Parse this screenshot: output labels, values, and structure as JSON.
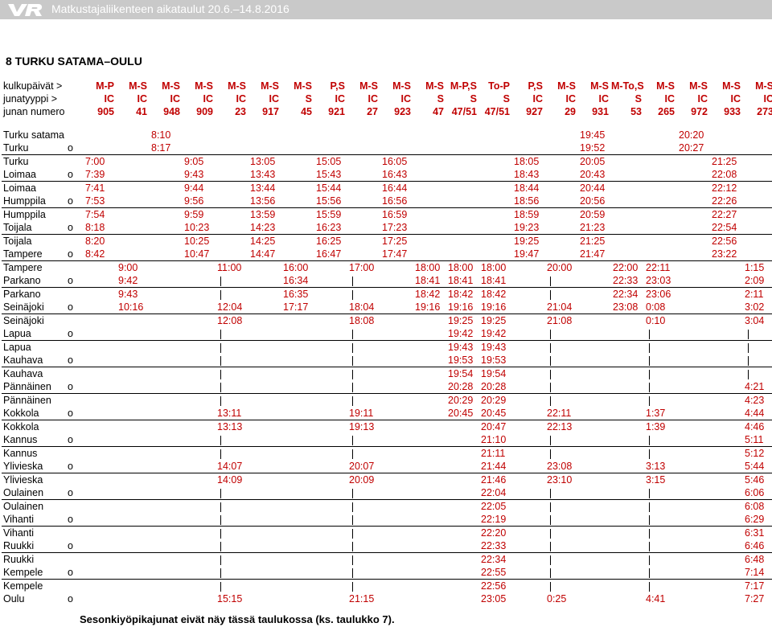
{
  "header": {
    "title": "Matkustajaliikenteen aikataulut 20.6.–14.8.2016",
    "brand_color": "#c00000"
  },
  "section_title": "8 TURKU SATAMA–OULU",
  "footnote": "Sesonkiyöpikajunat eivät näy tässä taulukossa (ks. taulukko 7).",
  "columns": [
    {
      "days": "M-P",
      "type": "IC",
      "num": "905"
    },
    {
      "days": "M-S",
      "type": "IC",
      "num": "41"
    },
    {
      "days": "M-S",
      "type": "IC",
      "num": "948"
    },
    {
      "days": "M-S",
      "type": "IC",
      "num": "909"
    },
    {
      "days": "M-S",
      "type": "IC",
      "num": "23"
    },
    {
      "days": "M-S",
      "type": "IC",
      "num": "917"
    },
    {
      "days": "M-S",
      "type": "S",
      "num": "45"
    },
    {
      "days": "P,S",
      "type": "IC",
      "num": "921"
    },
    {
      "days": "M-S",
      "type": "IC",
      "num": "27"
    },
    {
      "days": "M-S",
      "type": "IC",
      "num": "923"
    },
    {
      "days": "M-S",
      "type": "S",
      "num": "47"
    },
    {
      "days": "M-P,S",
      "type": "S",
      "num": "47/51"
    },
    {
      "days": "To-P",
      "type": "S",
      "num": "47/51"
    },
    {
      "days": "P,S",
      "type": "IC",
      "num": "927"
    },
    {
      "days": "M-S",
      "type": "IC",
      "num": "29"
    },
    {
      "days": "M-S",
      "type": "IC",
      "num": "931"
    },
    {
      "days": "M-To,S",
      "type": "S",
      "num": "53"
    },
    {
      "days": "M-S",
      "type": "IC",
      "num": "265"
    },
    {
      "days": "M-S",
      "type": "IC",
      "num": "972"
    },
    {
      "days": "M-S",
      "type": "IC",
      "num": "933"
    },
    {
      "days": "M-S",
      "type": "IC",
      "num": "273"
    }
  ],
  "header_labels": {
    "days": "kulkupäivät >",
    "type": "junatyyppi >",
    "num": "junan numero"
  },
  "rows": [
    {
      "st": "Turku satama",
      "mk": "",
      "sep": false,
      "t": [
        "",
        "",
        "8:10",
        "",
        "",
        "",
        "",
        "",
        "",
        "",
        "",
        "",
        "",
        "",
        "",
        "19:45",
        "",
        "",
        "20:20",
        "",
        ""
      ]
    },
    {
      "st": "Turku",
      "mk": "o",
      "sep": false,
      "t": [
        "",
        "",
        "8:17",
        "",
        "",
        "",
        "",
        "",
        "",
        "",
        "",
        "",
        "",
        "",
        "",
        "19:52",
        "",
        "",
        "20:27",
        "",
        ""
      ]
    },
    {
      "st": "Turku",
      "mk": "",
      "sep": true,
      "t": [
        "7:00",
        "",
        "",
        "9:05",
        "",
        "13:05",
        "",
        "15:05",
        "",
        "16:05",
        "",
        "",
        "",
        "18:05",
        "",
        "20:05",
        "",
        "",
        "",
        "21:25",
        ""
      ]
    },
    {
      "st": "Loimaa",
      "mk": "o",
      "sep": false,
      "t": [
        "7:39",
        "",
        "",
        "9:43",
        "",
        "13:43",
        "",
        "15:43",
        "",
        "16:43",
        "",
        "",
        "",
        "18:43",
        "",
        "20:43",
        "",
        "",
        "",
        "22:08",
        ""
      ]
    },
    {
      "st": "Loimaa",
      "mk": "",
      "sep": true,
      "t": [
        "7:41",
        "",
        "",
        "9:44",
        "",
        "13:44",
        "",
        "15:44",
        "",
        "16:44",
        "",
        "",
        "",
        "18:44",
        "",
        "20:44",
        "",
        "",
        "",
        "22:12",
        ""
      ]
    },
    {
      "st": "Humppila",
      "mk": "o",
      "sep": false,
      "t": [
        "7:53",
        "",
        "",
        "9:56",
        "",
        "13:56",
        "",
        "15:56",
        "",
        "16:56",
        "",
        "",
        "",
        "18:56",
        "",
        "20:56",
        "",
        "",
        "",
        "22:26",
        ""
      ]
    },
    {
      "st": "Humppila",
      "mk": "",
      "sep": true,
      "t": [
        "7:54",
        "",
        "",
        "9:59",
        "",
        "13:59",
        "",
        "15:59",
        "",
        "16:59",
        "",
        "",
        "",
        "18:59",
        "",
        "20:59",
        "",
        "",
        "",
        "22:27",
        ""
      ]
    },
    {
      "st": "Toijala",
      "mk": "o",
      "sep": false,
      "t": [
        "8:18",
        "",
        "",
        "10:23",
        "",
        "14:23",
        "",
        "16:23",
        "",
        "17:23",
        "",
        "",
        "",
        "19:23",
        "",
        "21:23",
        "",
        "",
        "",
        "22:54",
        ""
      ]
    },
    {
      "st": "Toijala",
      "mk": "",
      "sep": true,
      "t": [
        "8:20",
        "",
        "",
        "10:25",
        "",
        "14:25",
        "",
        "16:25",
        "",
        "17:25",
        "",
        "",
        "",
        "19:25",
        "",
        "21:25",
        "",
        "",
        "",
        "22:56",
        ""
      ]
    },
    {
      "st": "Tampere",
      "mk": "o",
      "sep": false,
      "t": [
        "8:42",
        "",
        "",
        "10:47",
        "",
        "14:47",
        "",
        "16:47",
        "",
        "17:47",
        "",
        "",
        "",
        "19:47",
        "",
        "21:47",
        "",
        "",
        "",
        "23:22",
        ""
      ]
    },
    {
      "st": "Tampere",
      "mk": "",
      "sep": true,
      "t": [
        "",
        "9:00",
        "",
        "",
        "11:00",
        "",
        "16:00",
        "",
        "17:00",
        "",
        "18:00",
        "18:00",
        "18:00",
        "",
        "20:00",
        "",
        "22:00",
        "22:11",
        "",
        "",
        "1:15"
      ]
    },
    {
      "st": "Parkano",
      "mk": "o",
      "sep": false,
      "t": [
        "",
        "9:42",
        "",
        "",
        "|",
        "",
        "16:34",
        "",
        "|",
        "",
        "18:41",
        "18:41",
        "18:41",
        "",
        "|",
        "",
        "22:33",
        "23:03",
        "",
        "",
        "2:09"
      ]
    },
    {
      "st": "Parkano",
      "mk": "",
      "sep": true,
      "t": [
        "",
        "9:43",
        "",
        "",
        "|",
        "",
        "16:35",
        "",
        "|",
        "",
        "18:42",
        "18:42",
        "18:42",
        "",
        "|",
        "",
        "22:34",
        "23:06",
        "",
        "",
        "2:11"
      ]
    },
    {
      "st": "Seinäjoki",
      "mk": "o",
      "sep": false,
      "t": [
        "",
        "10:16",
        "",
        "",
        "12:04",
        "",
        "17:17",
        "",
        "18:04",
        "",
        "19:16",
        "19:16",
        "19:16",
        "",
        "21:04",
        "",
        "23:08",
        "0:08",
        "",
        "",
        "3:02"
      ]
    },
    {
      "st": "Seinäjoki",
      "mk": "",
      "sep": true,
      "t": [
        "",
        "",
        "",
        "",
        "12:08",
        "",
        "",
        "",
        "18:08",
        "",
        "",
        "19:25",
        "19:25",
        "",
        "21:08",
        "",
        "",
        "0:10",
        "",
        "",
        "3:04"
      ]
    },
    {
      "st": "Lapua",
      "mk": "o",
      "sep": false,
      "t": [
        "",
        "",
        "",
        "",
        "|",
        "",
        "",
        "",
        "|",
        "",
        "",
        "19:42",
        "19:42",
        "",
        "|",
        "",
        "",
        "|",
        "",
        "",
        "|"
      ]
    },
    {
      "st": "Lapua",
      "mk": "",
      "sep": true,
      "t": [
        "",
        "",
        "",
        "",
        "|",
        "",
        "",
        "",
        "|",
        "",
        "",
        "19:43",
        "19:43",
        "",
        "|",
        "",
        "",
        "|",
        "",
        "",
        "|"
      ]
    },
    {
      "st": "Kauhava",
      "mk": "o",
      "sep": false,
      "t": [
        "",
        "",
        "",
        "",
        "|",
        "",
        "",
        "",
        "|",
        "",
        "",
        "19:53",
        "19:53",
        "",
        "|",
        "",
        "",
        "|",
        "",
        "",
        "|"
      ]
    },
    {
      "st": "Kauhava",
      "mk": "",
      "sep": true,
      "t": [
        "",
        "",
        "",
        "",
        "|",
        "",
        "",
        "",
        "|",
        "",
        "",
        "19:54",
        "19:54",
        "",
        "|",
        "",
        "",
        "|",
        "",
        "",
        "|"
      ]
    },
    {
      "st": "Pännäinen",
      "mk": "o",
      "sep": false,
      "t": [
        "",
        "",
        "",
        "",
        "|",
        "",
        "",
        "",
        "|",
        "",
        "",
        "20:28",
        "20:28",
        "",
        "|",
        "",
        "",
        "|",
        "",
        "",
        "4:21"
      ]
    },
    {
      "st": "Pännäinen",
      "mk": "",
      "sep": true,
      "t": [
        "",
        "",
        "",
        "",
        "|",
        "",
        "",
        "",
        "|",
        "",
        "",
        "20:29",
        "20:29",
        "",
        "|",
        "",
        "",
        "|",
        "",
        "",
        "4:23"
      ]
    },
    {
      "st": "Kokkola",
      "mk": "o",
      "sep": false,
      "t": [
        "",
        "",
        "",
        "",
        "13:11",
        "",
        "",
        "",
        "19:11",
        "",
        "",
        "20:45",
        "20:45",
        "",
        "22:11",
        "",
        "",
        "1:37",
        "",
        "",
        "4:44"
      ]
    },
    {
      "st": "Kokkola",
      "mk": "",
      "sep": true,
      "t": [
        "",
        "",
        "",
        "",
        "13:13",
        "",
        "",
        "",
        "19:13",
        "",
        "",
        "",
        "20:47",
        "",
        "22:13",
        "",
        "",
        "1:39",
        "",
        "",
        "4:46"
      ]
    },
    {
      "st": "Kannus",
      "mk": "o",
      "sep": false,
      "t": [
        "",
        "",
        "",
        "",
        "|",
        "",
        "",
        "",
        "|",
        "",
        "",
        "",
        "21:10",
        "",
        "|",
        "",
        "",
        "|",
        "",
        "",
        "5:11"
      ]
    },
    {
      "st": "Kannus",
      "mk": "",
      "sep": true,
      "t": [
        "",
        "",
        "",
        "",
        "|",
        "",
        "",
        "",
        "|",
        "",
        "",
        "",
        "21:11",
        "",
        "|",
        "",
        "",
        "|",
        "",
        "",
        "5:12"
      ]
    },
    {
      "st": "Ylivieska",
      "mk": "o",
      "sep": false,
      "t": [
        "",
        "",
        "",
        "",
        "14:07",
        "",
        "",
        "",
        "20:07",
        "",
        "",
        "",
        "21:44",
        "",
        "23:08",
        "",
        "",
        "3:13",
        "",
        "",
        "5:44"
      ]
    },
    {
      "st": "Ylivieska",
      "mk": "",
      "sep": true,
      "t": [
        "",
        "",
        "",
        "",
        "14:09",
        "",
        "",
        "",
        "20:09",
        "",
        "",
        "",
        "21:46",
        "",
        "23:10",
        "",
        "",
        "3:15",
        "",
        "",
        "5:46"
      ]
    },
    {
      "st": "Oulainen",
      "mk": "o",
      "sep": false,
      "t": [
        "",
        "",
        "",
        "",
        "|",
        "",
        "",
        "",
        "|",
        "",
        "",
        "",
        "22:04",
        "",
        "|",
        "",
        "",
        "|",
        "",
        "",
        "6:06"
      ]
    },
    {
      "st": "Oulainen",
      "mk": "",
      "sep": true,
      "t": [
        "",
        "",
        "",
        "",
        "|",
        "",
        "",
        "",
        "|",
        "",
        "",
        "",
        "22:05",
        "",
        "|",
        "",
        "",
        "|",
        "",
        "",
        "6:08"
      ]
    },
    {
      "st": "Vihanti",
      "mk": "o",
      "sep": false,
      "t": [
        "",
        "",
        "",
        "",
        "|",
        "",
        "",
        "",
        "|",
        "",
        "",
        "",
        "22:19",
        "",
        "|",
        "",
        "",
        "|",
        "",
        "",
        "6:29"
      ]
    },
    {
      "st": "Vihanti",
      "mk": "",
      "sep": true,
      "t": [
        "",
        "",
        "",
        "",
        "|",
        "",
        "",
        "",
        "|",
        "",
        "",
        "",
        "22:20",
        "",
        "|",
        "",
        "",
        "|",
        "",
        "",
        "6:31"
      ]
    },
    {
      "st": "Ruukki",
      "mk": "o",
      "sep": false,
      "t": [
        "",
        "",
        "",
        "",
        "|",
        "",
        "",
        "",
        "|",
        "",
        "",
        "",
        "22:33",
        "",
        "|",
        "",
        "",
        "|",
        "",
        "",
        "6:46"
      ]
    },
    {
      "st": "Ruukki",
      "mk": "",
      "sep": true,
      "t": [
        "",
        "",
        "",
        "",
        "|",
        "",
        "",
        "",
        "|",
        "",
        "",
        "",
        "22:34",
        "",
        "|",
        "",
        "",
        "|",
        "",
        "",
        "6:48"
      ]
    },
    {
      "st": "Kempele",
      "mk": "o",
      "sep": false,
      "t": [
        "",
        "",
        "",
        "",
        "|",
        "",
        "",
        "",
        "|",
        "",
        "",
        "",
        "22:55",
        "",
        "|",
        "",
        "",
        "|",
        "",
        "",
        "7:14"
      ]
    },
    {
      "st": "Kempele",
      "mk": "",
      "sep": true,
      "t": [
        "",
        "",
        "",
        "",
        "|",
        "",
        "",
        "",
        "|",
        "",
        "",
        "",
        "22:56",
        "",
        "|",
        "",
        "",
        "|",
        "",
        "",
        "7:17"
      ]
    },
    {
      "st": "Oulu",
      "mk": "o",
      "sep": false,
      "t": [
        "",
        "",
        "",
        "",
        "15:15",
        "",
        "",
        "",
        "21:15",
        "",
        "",
        "",
        "23:05",
        "",
        "0:25",
        "",
        "",
        "4:41",
        "",
        "",
        "7:27"
      ]
    }
  ]
}
